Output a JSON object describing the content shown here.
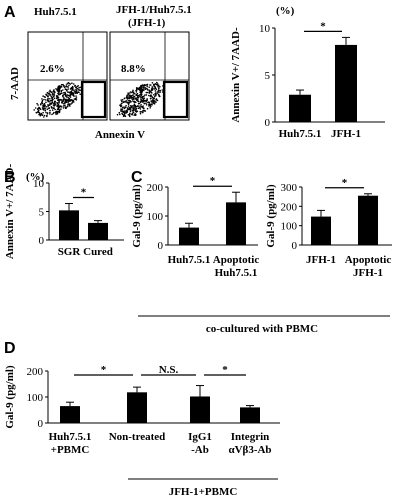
{
  "panels": {
    "a": "A",
    "b": "B",
    "c": "C",
    "d": "D"
  },
  "flow": {
    "plots": [
      {
        "title_lines": [
          "Huh7.5.1"
        ],
        "percent": "2.6%"
      },
      {
        "title_lines": [
          "JFH-1/Huh7.5.1",
          "(JFH-1)"
        ],
        "percent": "8.8%"
      }
    ],
    "ylabel": "7-AAD",
    "xlabel": "Annexin V"
  },
  "chart_data": [
    {
      "id": "A-bar",
      "type": "bar",
      "categories": [
        "Huh7.5.1",
        "JFH-1"
      ],
      "values": [
        2.9,
        8.2
      ],
      "errors": [
        0.5,
        0.8
      ],
      "ylabel": "Annexin V+/ 7AAD-",
      "unit": "(%)",
      "ylim": [
        0,
        10
      ],
      "yticks": [
        0,
        5,
        10
      ],
      "sig": [
        {
          "from": 0,
          "to": 1,
          "label": "*"
        }
      ]
    },
    {
      "id": "B-bar",
      "type": "bar",
      "categories": [
        "SGR",
        "Cured"
      ],
      "values": [
        5.2,
        3.0
      ],
      "errors": [
        1.2,
        0.4
      ],
      "ylabel": "Annexin V+/ 7AAD-",
      "unit": "(%)",
      "ylim": [
        0,
        10
      ],
      "yticks": [
        0,
        5,
        10
      ],
      "sig": [
        {
          "from": 0,
          "to": 1,
          "label": "*"
        }
      ]
    },
    {
      "id": "C1-bar",
      "type": "bar",
      "categories": [
        "Huh7.5.1",
        "Apoptotic Huh7.5.1"
      ],
      "values": [
        60,
        147
      ],
      "errors": [
        15,
        35
      ],
      "ylabel": "Gal-9 (pg/ml)",
      "ylim": [
        0,
        200
      ],
      "yticks": [
        0,
        100,
        200
      ],
      "sig": [
        {
          "from": 0,
          "to": 1,
          "label": "*"
        }
      ]
    },
    {
      "id": "C2-bar",
      "type": "bar",
      "categories": [
        "JFH-1",
        "Apoptotic JFH-1"
      ],
      "values": [
        147,
        255
      ],
      "errors": [
        32,
        10
      ],
      "ylabel": "Gal-9 (pg/ml)",
      "ylim": [
        0,
        300
      ],
      "yticks": [
        0,
        100,
        200,
        300
      ],
      "sig": [
        {
          "from": 0,
          "to": 1,
          "label": "*"
        }
      ]
    },
    {
      "id": "D-bar",
      "type": "bar",
      "categories": [
        "Huh7.5.1 +PBMC",
        "Non-treated",
        "IgG1 -Ab",
        "Integrin αVβ3-Ab"
      ],
      "values": [
        65,
        118,
        102,
        60
      ],
      "errors": [
        15,
        20,
        42,
        7
      ],
      "ylabel": "Gal-9 (pg/ml)",
      "ylim": [
        0,
        200
      ],
      "yticks": [
        0,
        100,
        200
      ],
      "sig": [
        {
          "from": 0,
          "to": 1,
          "label": "*"
        },
        {
          "from": 1,
          "to": 2,
          "label": "N.S."
        },
        {
          "from": 2,
          "to": 3,
          "label": "*"
        }
      ]
    }
  ],
  "c_footer": "co-cultured with PBMC",
  "d_footer": "JFH-1+PBMC"
}
